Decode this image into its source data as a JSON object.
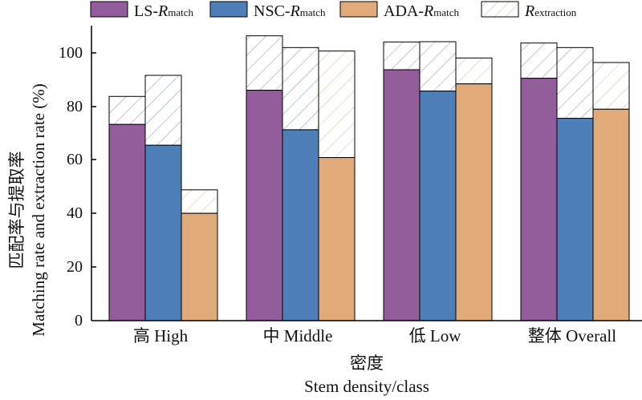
{
  "colors": {
    "ls": "#935d9c",
    "nsc": "#4f7fb8",
    "ada": "#e0ab78",
    "axis": "#000000",
    "ls_hatch": "#a787ad",
    "nsc_hatch": "#7896c0",
    "ada_hatch": "#e2b98c"
  },
  "chart_data": {
    "type": "bar",
    "subtype": "grouped-stacked",
    "ylabel_cn": "匹配率与提取率",
    "ylabel_en": "Matching rate and extraction rate (%)",
    "xlabel_cn": "密度",
    "xlabel_en": "Stem density/class",
    "ylim": [
      0,
      105
    ],
    "yticks": [
      "0",
      "20",
      "40",
      "60",
      "80",
      "100"
    ],
    "categories": [
      "高 High",
      "中 Middle",
      "低 Low",
      "整体 Overall"
    ],
    "legend": [
      {
        "prefix": "LS-",
        "main": "R",
        "sub": "match",
        "style": "solid-ls"
      },
      {
        "prefix": "NSC-",
        "main": "R",
        "sub": "match",
        "style": "solid-nsc"
      },
      {
        "prefix": "ADA-",
        "main": "R",
        "sub": "match",
        "style": "solid-ada"
      },
      {
        "prefix": "",
        "main": "R",
        "sub": "extraction",
        "style": "hatch"
      }
    ],
    "legend_position": "top",
    "series": [
      {
        "name": "LS",
        "match": [
          73.5,
          86.3,
          94.0,
          90.8
        ],
        "extraction": [
          84.0,
          106.7,
          104.4,
          104.0
        ]
      },
      {
        "name": "NSC",
        "match": [
          65.7,
          71.5,
          86.0,
          75.8
        ],
        "extraction": [
          91.9,
          102.3,
          104.5,
          102.3
        ]
      },
      {
        "name": "ADA",
        "match": [
          40.2,
          61.1,
          88.7,
          79.2
        ],
        "extraction": [
          49.0,
          101.0,
          98.4,
          96.7
        ]
      }
    ]
  }
}
